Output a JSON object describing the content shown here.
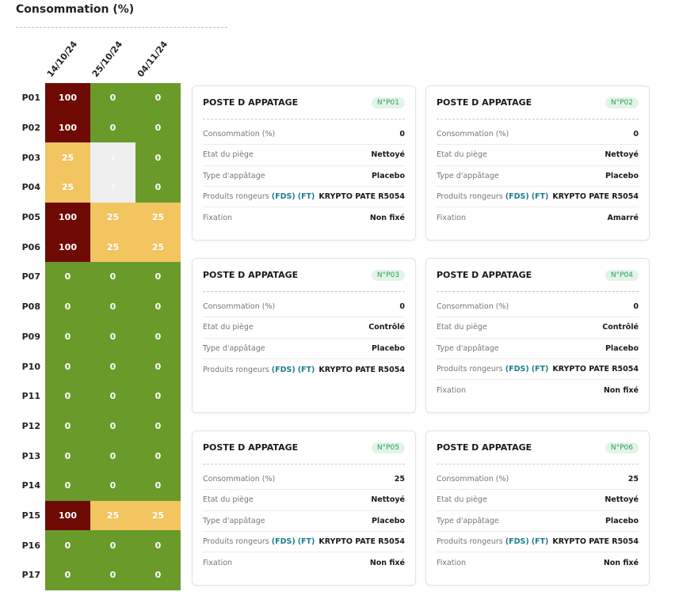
{
  "title": "Consommation (%)",
  "dates": [
    "14/10/24",
    "25/10/24",
    "04/11/24"
  ],
  "colors": {
    "high": "#6e0a03",
    "mid": "#f2c561",
    "low": "#6a9a2a",
    "none": "#efefef"
  },
  "rows": [
    {
      "label": "P01",
      "v0": "100",
      "v1": "0",
      "v2": "0"
    },
    {
      "label": "P02",
      "v0": "100",
      "v1": "0",
      "v2": "0"
    },
    {
      "label": "P03",
      "v0": "25",
      "v1": "/",
      "v2": "0"
    },
    {
      "label": "P04",
      "v0": "25",
      "v1": "/",
      "v2": "0"
    },
    {
      "label": "P05",
      "v0": "100",
      "v1": "25",
      "v2": "25"
    },
    {
      "label": "P06",
      "v0": "100",
      "v1": "25",
      "v2": "25"
    },
    {
      "label": "P07",
      "v0": "0",
      "v1": "0",
      "v2": "0"
    },
    {
      "label": "P08",
      "v0": "0",
      "v1": "0",
      "v2": "0"
    },
    {
      "label": "P09",
      "v0": "0",
      "v1": "0",
      "v2": "0"
    },
    {
      "label": "P10",
      "v0": "0",
      "v1": "0",
      "v2": "0"
    },
    {
      "label": "P11",
      "v0": "0",
      "v1": "0",
      "v2": "0"
    },
    {
      "label": "P12",
      "v0": "0",
      "v1": "0",
      "v2": "0"
    },
    {
      "label": "P13",
      "v0": "0",
      "v1": "0",
      "v2": "0"
    },
    {
      "label": "P14",
      "v0": "0",
      "v1": "0",
      "v2": "0"
    },
    {
      "label": "P15",
      "v0": "100",
      "v1": "25",
      "v2": "25"
    },
    {
      "label": "P16",
      "v0": "0",
      "v1": "0",
      "v2": "0"
    },
    {
      "label": "P17",
      "v0": "0",
      "v1": "0",
      "v2": "0"
    }
  ],
  "cards": [
    {
      "title": "POSTE D APPATAGE",
      "badge": "N°P01",
      "conso_label": "Consommation (%)",
      "conso": "0",
      "etat_label": "Etat du piège",
      "etat": "Nettoyé",
      "type_label": "Type d'appâtage",
      "type": "Placebo",
      "prod_label": "Produits rongeurs ",
      "fds": "(FDS)",
      "ft": "(FT)",
      "prod": "KRYPTO PATE R5054",
      "fix_label": "Fixation",
      "fix": "Non fixé"
    },
    {
      "title": "POSTE D APPATAGE",
      "badge": "N°P02",
      "conso_label": "Consommation (%)",
      "conso": "0",
      "etat_label": "Etat du piège",
      "etat": "Nettoyé",
      "type_label": "Type d'appâtage",
      "type": "Placebo",
      "prod_label": "Produits rongeurs ",
      "fds": "(FDS)",
      "ft": "(FT)",
      "prod": "KRYPTO PATE R5054",
      "fix_label": "Fixation",
      "fix": "Amarré"
    },
    {
      "title": "POSTE D APPATAGE",
      "badge": "N°P03",
      "conso_label": "Consommation (%)",
      "conso": "0",
      "etat_label": "Etat du piège",
      "etat": "Contrôlé",
      "type_label": "Type d'appâtage",
      "type": "Placebo",
      "prod_label": "Produits rongeurs ",
      "fds": "(FDS)",
      "ft": "(FT)",
      "prod": "KRYPTO PATE R5054",
      "fix_label": "",
      "fix": ""
    },
    {
      "title": "POSTE D APPATAGE",
      "badge": "N°P04",
      "conso_label": "Consommation (%)",
      "conso": "0",
      "etat_label": "Etat du piège",
      "etat": "Contrôlé",
      "type_label": "Type d'appâtage",
      "type": "Placebo",
      "prod_label": "Produits rongeurs ",
      "fds": "(FDS)",
      "ft": "(FT)",
      "prod": "KRYPTO PATE R5054",
      "fix_label": "Fixation",
      "fix": "Non fixé"
    },
    {
      "title": "POSTE D APPATAGE",
      "badge": "N°P05",
      "conso_label": "Consommation (%)",
      "conso": "25",
      "etat_label": "Etat du piège",
      "etat": "Nettoyé",
      "type_label": "Type d'appâtage",
      "type": "Placebo",
      "prod_label": "Produits rongeurs ",
      "fds": "(FDS)",
      "ft": "(FT)",
      "prod": "KRYPTO PATE R5054",
      "fix_label": "Fixation",
      "fix": "Non fixé"
    },
    {
      "title": "POSTE D APPATAGE",
      "badge": "N°P06",
      "conso_label": "Consommation (%)",
      "conso": "25",
      "etat_label": "Etat du piège",
      "etat": "Nettoyé",
      "type_label": "Type d'appâtage",
      "type": "Placebo",
      "prod_label": "Produits rongeurs ",
      "fds": "(FDS)",
      "ft": "(FT)",
      "prod": "KRYPTO PATE R5054",
      "fix_label": "Fixation",
      "fix": "Non fixé"
    }
  ]
}
